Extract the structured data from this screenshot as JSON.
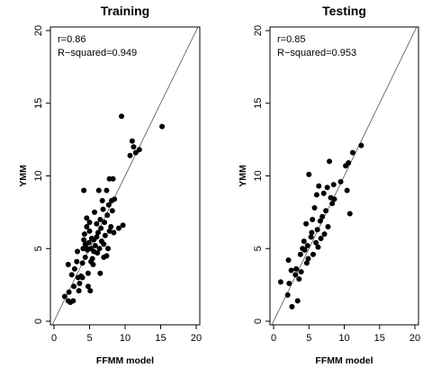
{
  "chart_data": [
    {
      "type": "scatter",
      "title": "Training",
      "xlabel": "FFMM model",
      "ylabel": "YMM",
      "xlim": [
        0,
        20
      ],
      "ylim": [
        0,
        20
      ],
      "xticks": [
        "0",
        "5",
        "10",
        "15",
        "20"
      ],
      "yticks": [
        "0",
        "5",
        "10",
        "15",
        "20"
      ],
      "grid": false,
      "reference_line": "y = x",
      "annotations": [
        "r=0.86",
        "R−squared=0.949"
      ],
      "points": [
        [
          1.5,
          1.7
        ],
        [
          2.0,
          1.4
        ],
        [
          2.3,
          1.3
        ],
        [
          2.1,
          2.0
        ],
        [
          2.0,
          3.9
        ],
        [
          2.7,
          1.4
        ],
        [
          2.8,
          2.4
        ],
        [
          2.5,
          3.2
        ],
        [
          2.9,
          3.6
        ],
        [
          3.2,
          4.1
        ],
        [
          3.3,
          4.8
        ],
        [
          3.4,
          3.0
        ],
        [
          3.5,
          2.1
        ],
        [
          3.6,
          2.6
        ],
        [
          3.8,
          3.1
        ],
        [
          4.0,
          3.0
        ],
        [
          4.0,
          4.0
        ],
        [
          4.1,
          5.0
        ],
        [
          4.2,
          5.6
        ],
        [
          4.2,
          9.0
        ],
        [
          4.3,
          6.0
        ],
        [
          4.4,
          5.3
        ],
        [
          4.4,
          4.4
        ],
        [
          4.5,
          5.1
        ],
        [
          4.6,
          6.5
        ],
        [
          4.6,
          7.1
        ],
        [
          4.7,
          4.9
        ],
        [
          4.8,
          2.4
        ],
        [
          4.8,
          3.3
        ],
        [
          4.9,
          5.4
        ],
        [
          5.0,
          6.2
        ],
        [
          5.0,
          6.8
        ],
        [
          5.1,
          2.1
        ],
        [
          5.2,
          5.0
        ],
        [
          5.2,
          4.1
        ],
        [
          5.3,
          5.7
        ],
        [
          5.4,
          4.3
        ],
        [
          5.5,
          3.9
        ],
        [
          5.6,
          5.6
        ],
        [
          5.6,
          4.8
        ],
        [
          5.7,
          7.5
        ],
        [
          5.8,
          5.2
        ],
        [
          6.0,
          6.7
        ],
        [
          6.0,
          5.8
        ],
        [
          6.1,
          4.7
        ],
        [
          6.2,
          6.1
        ],
        [
          6.3,
          9.0
        ],
        [
          6.4,
          5.0
        ],
        [
          6.5,
          3.3
        ],
        [
          6.5,
          7.0
        ],
        [
          6.6,
          6.4
        ],
        [
          6.7,
          5.5
        ],
        [
          6.8,
          8.3
        ],
        [
          6.9,
          7.7
        ],
        [
          7.0,
          5.3
        ],
        [
          7.0,
          4.4
        ],
        [
          7.1,
          6.8
        ],
        [
          7.2,
          5.9
        ],
        [
          7.4,
          4.5
        ],
        [
          7.4,
          9.0
        ],
        [
          7.5,
          7.3
        ],
        [
          7.6,
          5.0
        ],
        [
          7.7,
          8.0
        ],
        [
          7.8,
          9.8
        ],
        [
          7.8,
          6.2
        ],
        [
          8.0,
          6.5
        ],
        [
          8.1,
          8.3
        ],
        [
          8.2,
          7.6
        ],
        [
          8.3,
          9.8
        ],
        [
          8.4,
          6.1
        ],
        [
          8.5,
          8.4
        ],
        [
          9.1,
          6.4
        ],
        [
          9.5,
          14.1
        ],
        [
          9.7,
          6.6
        ],
        [
          10.7,
          11.4
        ],
        [
          11.0,
          12.4
        ],
        [
          11.2,
          12.0
        ],
        [
          11.5,
          11.6
        ],
        [
          12.0,
          11.8
        ],
        [
          15.2,
          13.4
        ]
      ]
    },
    {
      "type": "scatter",
      "title": "Testing",
      "xlabel": "FFMM model",
      "ylabel": "YMM",
      "xlim": [
        0,
        20
      ],
      "ylim": [
        0,
        20
      ],
      "xticks": [
        "0",
        "5",
        "10",
        "15",
        "20"
      ],
      "yticks": [
        "0",
        "5",
        "10",
        "15",
        "20"
      ],
      "grid": false,
      "reference_line": "y = x",
      "annotations": [
        "r=0.85",
        "R−squared=0.953"
      ],
      "points": [
        [
          1.0,
          2.7
        ],
        [
          2.0,
          1.8
        ],
        [
          2.1,
          4.2
        ],
        [
          2.2,
          2.6
        ],
        [
          2.5,
          3.5
        ],
        [
          2.6,
          1.0
        ],
        [
          3.1,
          3.2
        ],
        [
          3.2,
          3.6
        ],
        [
          3.4,
          1.4
        ],
        [
          3.6,
          2.9
        ],
        [
          3.8,
          4.6
        ],
        [
          3.9,
          3.4
        ],
        [
          4.1,
          5.0
        ],
        [
          4.3,
          5.5
        ],
        [
          4.4,
          4.9
        ],
        [
          4.6,
          6.7
        ],
        [
          4.7,
          4.0
        ],
        [
          4.8,
          5.2
        ],
        [
          4.9,
          4.3
        ],
        [
          5.0,
          10.1
        ],
        [
          5.3,
          5.8
        ],
        [
          5.4,
          6.1
        ],
        [
          5.5,
          7.0
        ],
        [
          5.6,
          4.6
        ],
        [
          5.8,
          7.8
        ],
        [
          6.0,
          5.4
        ],
        [
          6.1,
          8.7
        ],
        [
          6.2,
          6.3
        ],
        [
          6.3,
          5.1
        ],
        [
          6.4,
          9.3
        ],
        [
          6.6,
          6.9
        ],
        [
          6.7,
          5.7
        ],
        [
          6.9,
          7.2
        ],
        [
          7.1,
          8.8
        ],
        [
          7.2,
          6.0
        ],
        [
          7.4,
          7.6
        ],
        [
          7.6,
          9.2
        ],
        [
          7.7,
          6.5
        ],
        [
          7.9,
          11.0
        ],
        [
          8.1,
          8.5
        ],
        [
          8.3,
          8.1
        ],
        [
          8.5,
          9.4
        ],
        [
          8.6,
          8.4
        ],
        [
          9.5,
          9.6
        ],
        [
          10.2,
          10.7
        ],
        [
          10.4,
          9.0
        ],
        [
          10.6,
          10.9
        ],
        [
          10.8,
          7.4
        ],
        [
          11.2,
          11.6
        ],
        [
          12.4,
          12.1
        ]
      ]
    }
  ]
}
